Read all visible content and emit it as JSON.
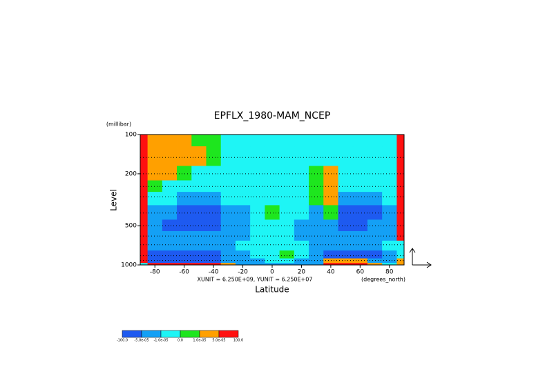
{
  "chart_data": {
    "type": "contour",
    "title": "EPFLX_1980-MAM_NCEP",
    "y_unit": "(millibar)",
    "y_label": "Level",
    "x_label": "Latitude",
    "x_unit": "(degrees_north)",
    "annotation": "XUNIT = 6.250E+09, YUNIT = 6.250E+07",
    "xlim": [
      -90,
      90
    ],
    "xticks": [
      -80,
      -60,
      -40,
      -20,
      0,
      20,
      40,
      60,
      80
    ],
    "ylim": [
      1000,
      100
    ],
    "yticks": [
      100,
      200,
      500,
      1000
    ],
    "log_y": true,
    "x": [
      -90,
      -80,
      -70,
      -60,
      -50,
      -40,
      -30,
      -20,
      -10,
      0,
      10,
      20,
      30,
      40,
      50,
      60,
      70,
      80,
      90
    ],
    "y": [
      1000,
      925,
      850,
      700,
      600,
      500,
      400,
      300,
      250,
      200,
      150,
      100
    ],
    "values": [
      [
        -5e-06,
        8e-05,
        8e-05,
        8e-05,
        8e-05,
        8e-05,
        3e-05,
        -3e-05,
        -3e-05,
        -3e-05,
        -3e-05,
        -3e-05,
        -3e-05,
        8e-05,
        8e-05,
        8e-05,
        3e-05,
        -5e-06,
        3e-05
      ],
      [
        8e-05,
        -8e-05,
        -8e-05,
        -8e-05,
        -8e-05,
        -8e-05,
        -3e-05,
        -3e-05,
        -3e-05,
        -5e-06,
        -5e-06,
        -3e-05,
        -3e-05,
        3e-05,
        3e-05,
        3e-05,
        -3e-05,
        -3e-05,
        3e-05
      ],
      [
        8e-05,
        -8e-05,
        -8e-05,
        -8e-05,
        -8e-05,
        -8e-05,
        -3e-05,
        -3e-05,
        -5e-06,
        -5e-06,
        5e-06,
        -5e-06,
        -3e-05,
        -8e-05,
        -8e-05,
        -8e-05,
        -8e-05,
        -3e-05,
        -5e-06
      ],
      [
        8e-05,
        -3e-05,
        -3e-05,
        -3e-05,
        -3e-05,
        -3e-05,
        -3e-05,
        -5e-06,
        -5e-06,
        -5e-06,
        -5e-06,
        -5e-06,
        -3e-05,
        -3e-05,
        -3e-05,
        -3e-05,
        -3e-05,
        -5e-06,
        -5e-06
      ],
      [
        8e-05,
        -3e-05,
        -3e-05,
        -3e-05,
        -3e-05,
        -3e-05,
        -3e-05,
        -3e-05,
        -5e-06,
        -5e-06,
        -5e-06,
        -3e-05,
        -3e-05,
        -3e-05,
        -3e-05,
        -3e-05,
        -3e-05,
        -3e-05,
        8e-05
      ],
      [
        8e-05,
        -3e-05,
        -8e-05,
        -8e-05,
        -8e-05,
        -8e-05,
        -3e-05,
        -3e-05,
        -5e-06,
        -5e-06,
        -5e-06,
        -3e-05,
        -3e-05,
        -3e-05,
        -8e-05,
        -8e-05,
        -3e-05,
        -3e-05,
        8e-05
      ],
      [
        8e-05,
        -3e-05,
        -3e-05,
        -8e-05,
        -8e-05,
        -8e-05,
        -3e-05,
        -3e-05,
        -5e-06,
        5e-06,
        -5e-06,
        -5e-06,
        -3e-05,
        5e-06,
        -8e-05,
        -8e-05,
        -8e-05,
        -3e-05,
        8e-05
      ],
      [
        8e-05,
        -5e-06,
        -5e-06,
        -3e-05,
        -3e-05,
        -3e-05,
        -5e-06,
        -5e-06,
        -5e-06,
        -5e-06,
        -5e-06,
        -5e-06,
        5e-06,
        3e-05,
        -3e-05,
        -3e-05,
        -3e-05,
        -5e-06,
        8e-05
      ],
      [
        8e-05,
        5e-06,
        -5e-06,
        -5e-06,
        -5e-06,
        -5e-06,
        -5e-06,
        -5e-06,
        -5e-06,
        -5e-06,
        -5e-06,
        -5e-06,
        5e-06,
        3e-05,
        -5e-06,
        -5e-06,
        -5e-06,
        -5e-06,
        8e-05
      ],
      [
        8e-05,
        3e-05,
        3e-05,
        5e-06,
        -5e-06,
        -5e-06,
        -5e-06,
        -5e-06,
        -5e-06,
        -5e-06,
        -5e-06,
        -5e-06,
        5e-06,
        3e-05,
        -5e-06,
        -5e-06,
        -5e-06,
        -5e-06,
        8e-05
      ],
      [
        8e-05,
        3e-05,
        3e-05,
        3e-05,
        3e-05,
        5e-06,
        -5e-06,
        -5e-06,
        -5e-06,
        -5e-06,
        -5e-06,
        -5e-06,
        -5e-06,
        -5e-06,
        -5e-06,
        -5e-06,
        -5e-06,
        -5e-06,
        8e-05
      ],
      [
        8e-05,
        3e-05,
        3e-05,
        3e-05,
        5e-06,
        5e-06,
        -5e-06,
        -5e-06,
        -5e-06,
        -5e-06,
        -5e-06,
        -5e-06,
        -5e-06,
        -5e-06,
        -5e-06,
        -5e-06,
        -5e-06,
        -5e-06,
        8e-05
      ]
    ],
    "levels": [
      {
        "value": -100,
        "label": "-100.0"
      },
      {
        "value": -5e-05,
        "label": "-5.0e-05"
      },
      {
        "value": -1e-05,
        "label": "-1.0e-05"
      },
      {
        "value": 0,
        "label": "0.0"
      },
      {
        "value": 1e-05,
        "label": "1.0e-05"
      },
      {
        "value": 5e-05,
        "label": "5.0e-05"
      },
      {
        "value": 100,
        "label": "100.0"
      }
    ],
    "colors": [
      "#1e5af0",
      "#14a0f5",
      "#1ef5f5",
      "#1ee61e",
      "#ffa000",
      "#ff1010"
    ]
  }
}
